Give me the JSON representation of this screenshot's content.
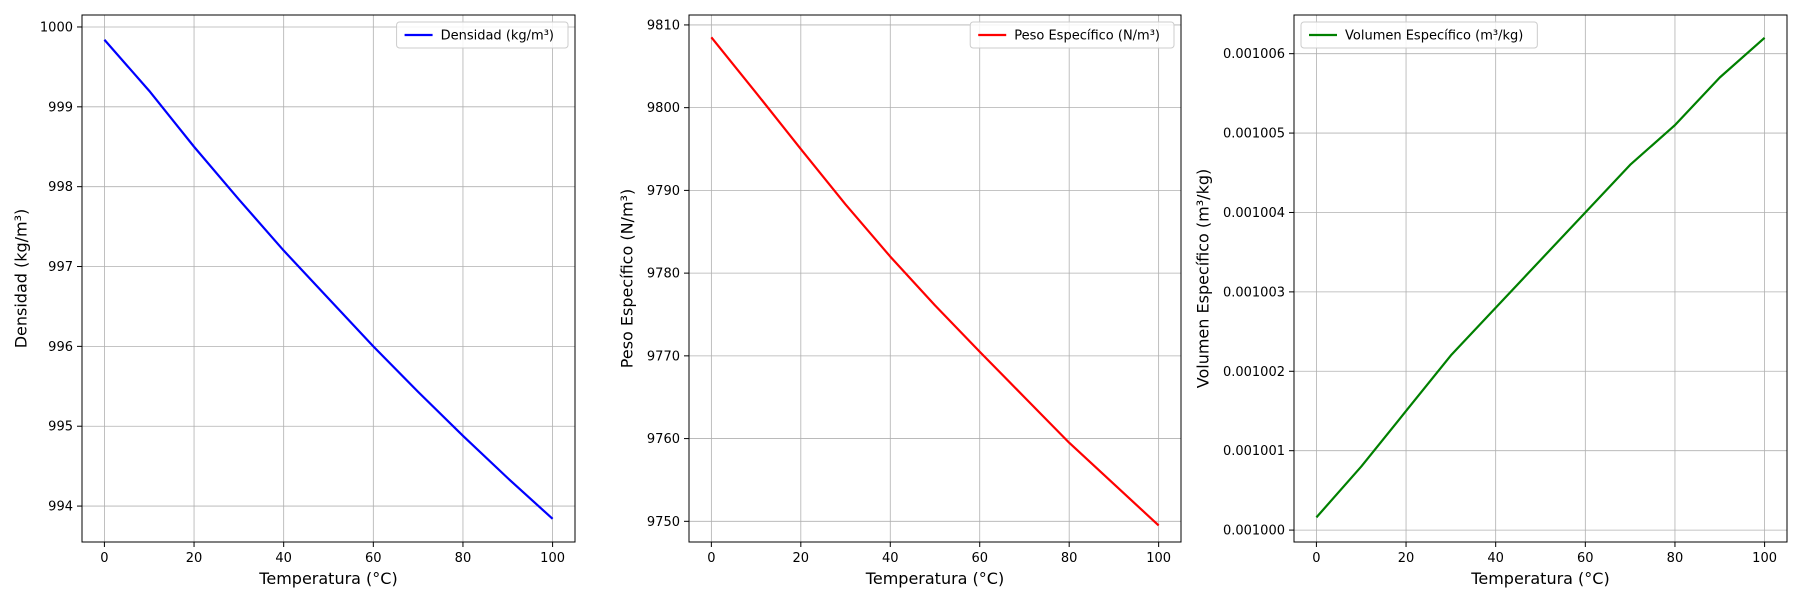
{
  "chart_data": [
    {
      "type": "line",
      "xlabel": "Temperatura (°C)",
      "ylabel": "Densidad (kg/m³)",
      "xlim": [
        -5,
        105
      ],
      "ylim": [
        993.55,
        1000.15
      ],
      "x_ticks": [
        0,
        20,
        40,
        60,
        80,
        100
      ],
      "y_ticks": [
        994,
        995,
        996,
        997,
        998,
        999,
        1000
      ],
      "y_tick_labels": [
        "994",
        "995",
        "996",
        "997",
        "998",
        "999",
        "1000"
      ],
      "grid": true,
      "legend": "top-right",
      "series": [
        {
          "name": "Densidad (kg/m³)",
          "color": "#0000ff",
          "x": [
            0,
            10,
            20,
            30,
            40,
            50,
            60,
            70,
            80,
            90,
            100
          ],
          "y": [
            999.84,
            999.2,
            998.5,
            997.84,
            997.2,
            996.6,
            996.0,
            995.43,
            994.88,
            994.35,
            993.84
          ]
        }
      ]
    },
    {
      "type": "line",
      "xlabel": "Temperatura (°C)",
      "ylabel": "Peso Específico (N/m³)",
      "xlim": [
        -5,
        105
      ],
      "ylim": [
        9747.5,
        9811.2
      ],
      "x_ticks": [
        0,
        20,
        40,
        60,
        80,
        100
      ],
      "y_ticks": [
        9750,
        9760,
        9770,
        9780,
        9790,
        9800,
        9810
      ],
      "y_tick_labels": [
        "9750",
        "9760",
        "9770",
        "9780",
        "9790",
        "9800",
        "9810"
      ],
      "grid": true,
      "legend": "top-right",
      "series": [
        {
          "name": "Peso Específico (N/m³)",
          "color": "#ff0000",
          "x": [
            0,
            10,
            20,
            30,
            40,
            50,
            60,
            70,
            80,
            90,
            100
          ],
          "y": [
            9808.5,
            9801.8,
            9795.0,
            9788.3,
            9782.0,
            9776.1,
            9770.5,
            9765.0,
            9759.5,
            9754.5,
            9749.5
          ]
        }
      ]
    },
    {
      "type": "line",
      "xlabel": "Temperatura (°C)",
      "ylabel": "Volumen Específico (m³/kg)",
      "xlim": [
        -5,
        105
      ],
      "ylim": [
        0.00099985,
        0.001006487
      ],
      "x_ticks": [
        0,
        20,
        40,
        60,
        80,
        100
      ],
      "y_ticks": [
        0.001,
        0.001001,
        0.001002,
        0.001003,
        0.001004,
        0.001005,
        0.001006
      ],
      "y_tick_labels": [
        "0.001000",
        "0.001001",
        "0.001002",
        "0.001003",
        "0.001004",
        "0.001005",
        "0.001006"
      ],
      "grid": true,
      "legend": "top-left",
      "series": [
        {
          "name": "Volumen Específico (m³/kg)",
          "color": "#008000",
          "x": [
            0,
            10,
            20,
            30,
            40,
            50,
            60,
            70,
            80,
            90,
            100
          ],
          "y": [
            0.00100016,
            0.0010008,
            0.0010015,
            0.0010022,
            0.0010028,
            0.0010034,
            0.001004,
            0.0010046,
            0.0010051,
            0.0010057,
            0.0010062
          ]
        }
      ]
    }
  ]
}
